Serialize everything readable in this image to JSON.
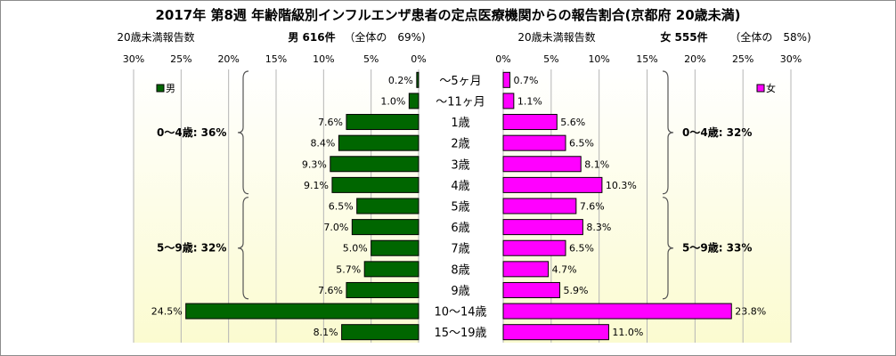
{
  "title": "2017年 第8週 年齢階級別インフルエンザ患者の定点医療機関からの報告割合(京都府 20歳未満)",
  "left_header": {
    "caption": "20歳未満報告数",
    "count": "男 616件",
    "share": "（全体の　69%)"
  },
  "right_header": {
    "caption": "20歳未満報告数",
    "count": "女 555件",
    "share": "（全体の　58%)"
  },
  "chart_data": [
    {
      "type": "bar",
      "orientation": "horizontal",
      "side": "left",
      "series": [
        {
          "name": "男",
          "color": "#006600",
          "values": [
            0.2,
            1.0,
            7.6,
            8.4,
            9.3,
            9.1,
            6.5,
            7.0,
            5.0,
            5.7,
            7.6,
            24.5,
            8.1
          ]
        }
      ],
      "categories": [
        "〜5ヶ月",
        "〜11ヶ月",
        "1歳",
        "2歳",
        "3歳",
        "4歳",
        "5歳",
        "6歳",
        "7歳",
        "8歳",
        "9歳",
        "10〜14歳",
        "15〜19歳"
      ],
      "data_labels": [
        "0.2%",
        "1.0%",
        "7.6%",
        "8.4%",
        "9.3%",
        "9.1%",
        "6.5%",
        "7.0%",
        "5.0%",
        "5.7%",
        "7.6%",
        "24.5%",
        "8.1%"
      ],
      "xlim": [
        0,
        30
      ],
      "x_ticks": [
        "30%",
        "25%",
        "20%",
        "15%",
        "10%",
        "5%",
        "0%"
      ],
      "annotations": [
        "0〜4歳: 36%",
        "5〜9歳: 32%"
      ],
      "legend": "top-left",
      "grid": true
    },
    {
      "type": "bar",
      "orientation": "horizontal",
      "side": "right",
      "series": [
        {
          "name": "女",
          "color": "#ff00ff",
          "values": [
            0.7,
            1.1,
            5.6,
            6.5,
            8.1,
            10.3,
            7.6,
            8.3,
            6.5,
            4.7,
            5.9,
            23.8,
            11.0
          ]
        }
      ],
      "categories": [
        "〜5ヶ月",
        "〜11ヶ月",
        "1歳",
        "2歳",
        "3歳",
        "4歳",
        "5歳",
        "6歳",
        "7歳",
        "8歳",
        "9歳",
        "10〜14歳",
        "15〜19歳"
      ],
      "data_labels": [
        "0.7%",
        "1.1%",
        "5.6%",
        "6.5%",
        "8.1%",
        "10.3%",
        "7.6%",
        "8.3%",
        "6.5%",
        "4.7%",
        "5.9%",
        "23.8%",
        "11.0%"
      ],
      "xlim": [
        0,
        30
      ],
      "x_ticks": [
        "0%",
        "5%",
        "10%",
        "15%",
        "20%",
        "25%",
        "30%"
      ],
      "annotations": [
        "0〜4歳: 32%",
        "5〜9歳: 33%"
      ],
      "legend": "top-right",
      "grid": true
    }
  ]
}
